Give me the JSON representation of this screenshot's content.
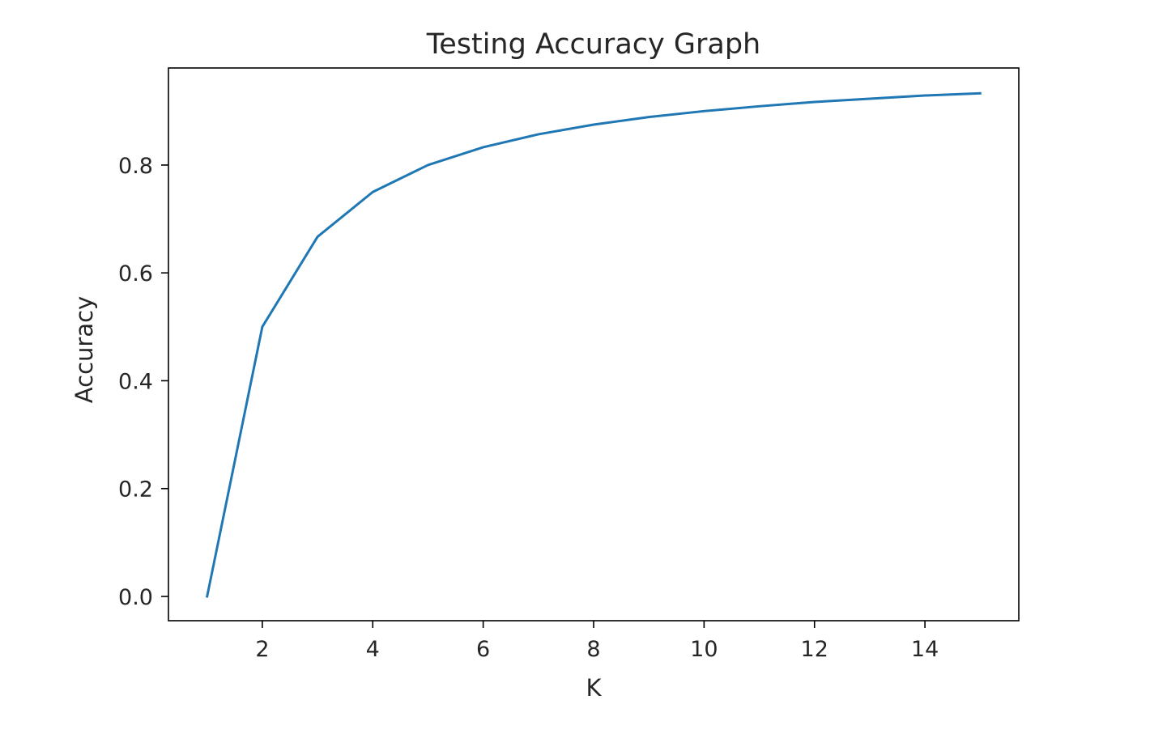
{
  "chart_data": {
    "type": "line",
    "title": "Testing Accuracy Graph",
    "xlabel": "K",
    "ylabel": "Accuracy",
    "xlim": [
      0.3,
      15.7
    ],
    "ylim": [
      -0.045,
      0.98
    ],
    "xticks": [
      2,
      4,
      6,
      8,
      10,
      12,
      14
    ],
    "xtick_labels": [
      "2",
      "4",
      "6",
      "8",
      "10",
      "12",
      "14"
    ],
    "yticks": [
      0.0,
      0.2,
      0.4,
      0.6,
      0.8
    ],
    "ytick_labels": [
      "0.0",
      "0.2",
      "0.4",
      "0.6",
      "0.8"
    ],
    "grid": false,
    "series": [
      {
        "color": "#1f77b4",
        "x": [
          1,
          2,
          3,
          4,
          5,
          6,
          7,
          8,
          9,
          10,
          11,
          12,
          13,
          14,
          15
        ],
        "y": [
          0.0,
          0.5,
          0.667,
          0.75,
          0.8,
          0.833,
          0.857,
          0.875,
          0.889,
          0.9,
          0.909,
          0.917,
          0.923,
          0.929,
          0.933
        ]
      }
    ]
  }
}
